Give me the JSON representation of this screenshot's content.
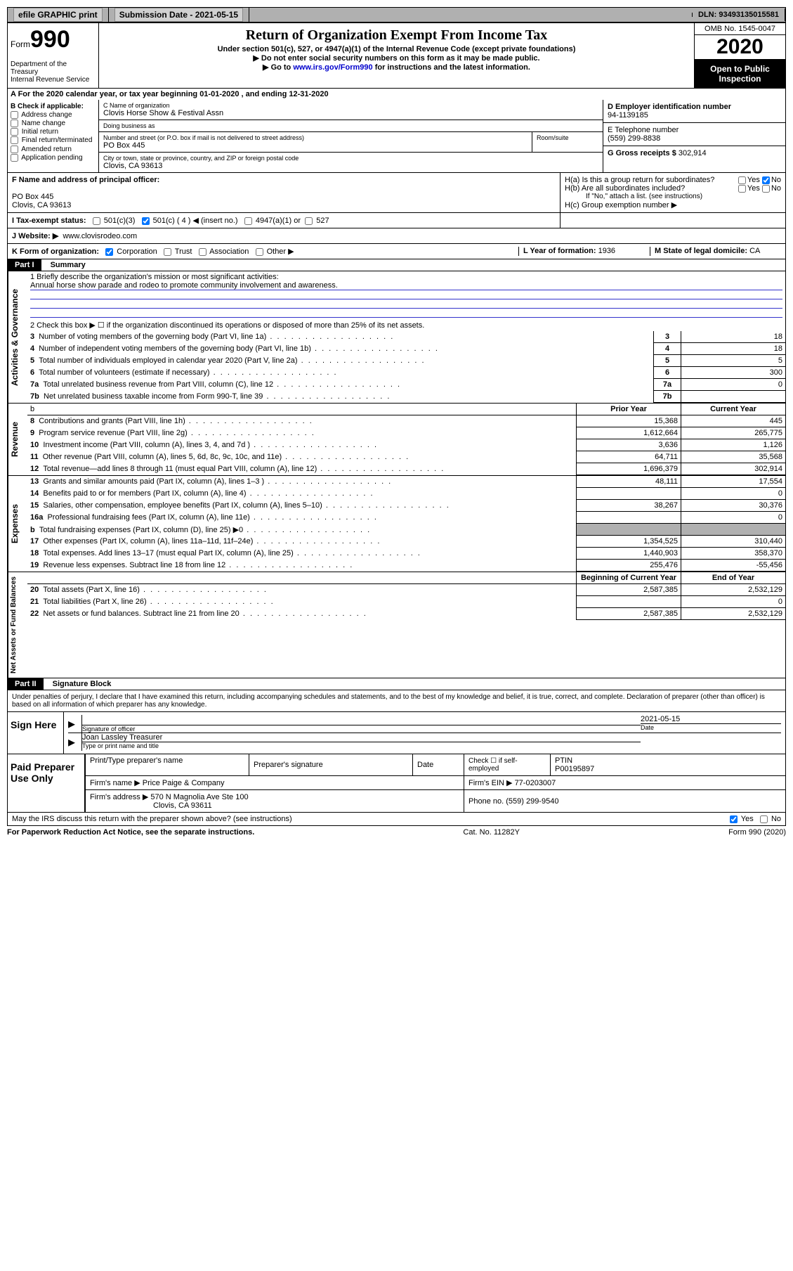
{
  "topbar": {
    "efile": "efile GRAPHIC print",
    "submission_lbl": "Submission Date",
    "submission_date": "2021-05-15",
    "dln_lbl": "DLN:",
    "dln": "93493135015581"
  },
  "header": {
    "form_word": "Form",
    "form_num": "990",
    "dept1": "Department of the Treasury",
    "dept2": "Internal Revenue Service",
    "title": "Return of Organization Exempt From Income Tax",
    "subtitle": "Under section 501(c), 527, or 4947(a)(1) of the Internal Revenue Code (except private foundations)",
    "instr1": "▶ Do not enter social security numbers on this form as it may be made public.",
    "instr2a": "▶ Go to ",
    "instr2_link": "www.irs.gov/Form990",
    "instr2b": " for instructions and the latest information.",
    "omb": "OMB No. 1545-0047",
    "year": "2020",
    "open": "Open to Public Inspection"
  },
  "lineA": "A For the 2020 calendar year, or tax year beginning 01-01-2020   , and ending 12-31-2020",
  "secB": {
    "title": "B Check if applicable:",
    "opts": [
      "Address change",
      "Name change",
      "Initial return",
      "Final return/terminated",
      "Amended return",
      "Application pending"
    ]
  },
  "secC": {
    "name_lbl": "C Name of organization",
    "name": "Clovis Horse Show & Festival Assn",
    "dba_lbl": "Doing business as",
    "dba": "",
    "addr_lbl": "Number and street (or P.O. box if mail is not delivered to street address)",
    "room_lbl": "Room/suite",
    "addr": "PO Box 445",
    "city_lbl": "City or town, state or province, country, and ZIP or foreign postal code",
    "city": "Clovis, CA  93613"
  },
  "secD": {
    "ein_lbl": "D Employer identification number",
    "ein": "94-1139185",
    "phone_lbl": "E Telephone number",
    "phone": "(559) 299-8838",
    "gross_lbl": "G Gross receipts $",
    "gross": "302,914"
  },
  "secF": {
    "lbl": "F Name and address of principal officer:",
    "line1": "PO Box 445",
    "line2": "Clovis, CA  93613"
  },
  "secH": {
    "ha": "H(a)  Is this a group return for subordinates?",
    "hb": "H(b)  Are all subordinates included?",
    "hb_note": "If \"No,\" attach a list. (see instructions)",
    "hc": "H(c)  Group exemption number ▶",
    "yes": "Yes",
    "no": "No"
  },
  "lineI": {
    "lbl": "I   Tax-exempt status:",
    "o1": "501(c)(3)",
    "o2": "501(c) ( 4 ) ◀ (insert no.)",
    "o3": "4947(a)(1) or",
    "o4": "527"
  },
  "lineJ": {
    "lbl": "J   Website: ▶",
    "val": "www.clovisrodeo.com"
  },
  "lineK": {
    "lbl": "K Form of organization:",
    "o1": "Corporation",
    "o2": "Trust",
    "o3": "Association",
    "o4": "Other ▶",
    "L_lbl": "L Year of formation:",
    "L_val": "1936",
    "M_lbl": "M State of legal domicile:",
    "M_val": "CA"
  },
  "part1": {
    "hdr": "Part I",
    "title": "Summary",
    "q1_lbl": "1  Briefly describe the organization's mission or most significant activities:",
    "q1_val": "Annual horse show parade and rodeo to promote community involvement and awareness.",
    "q2": "2  Check this box ▶ ☐  if the organization discontinued its operations or disposed of more than 25% of its net assets.",
    "rows_gov": [
      {
        "n": "3",
        "t": "Number of voting members of the governing body (Part VI, line 1a)",
        "v": "18"
      },
      {
        "n": "4",
        "t": "Number of independent voting members of the governing body (Part VI, line 1b)",
        "v": "18"
      },
      {
        "n": "5",
        "t": "Total number of individuals employed in calendar year 2020 (Part V, line 2a)",
        "v": "5"
      },
      {
        "n": "6",
        "t": "Total number of volunteers (estimate if necessary)",
        "v": "300"
      },
      {
        "n": "7a",
        "t": "Total unrelated business revenue from Part VIII, column (C), line 12",
        "v": "0"
      },
      {
        "n": "7b",
        "t": "Net unrelated business taxable income from Form 990-T, line 39",
        "v": ""
      }
    ],
    "col_prior": "Prior Year",
    "col_curr": "Current Year",
    "rows_rev": [
      {
        "n": "8",
        "t": "Contributions and grants (Part VIII, line 1h)",
        "p": "15,368",
        "c": "445"
      },
      {
        "n": "9",
        "t": "Program service revenue (Part VIII, line 2g)",
        "p": "1,612,664",
        "c": "265,775"
      },
      {
        "n": "10",
        "t": "Investment income (Part VIII, column (A), lines 3, 4, and 7d )",
        "p": "3,636",
        "c": "1,126"
      },
      {
        "n": "11",
        "t": "Other revenue (Part VIII, column (A), lines 5, 6d, 8c, 9c, 10c, and 11e)",
        "p": "64,711",
        "c": "35,568"
      },
      {
        "n": "12",
        "t": "Total revenue—add lines 8 through 11 (must equal Part VIII, column (A), line 12)",
        "p": "1,696,379",
        "c": "302,914"
      }
    ],
    "rows_exp": [
      {
        "n": "13",
        "t": "Grants and similar amounts paid (Part IX, column (A), lines 1–3 )",
        "p": "48,111",
        "c": "17,554"
      },
      {
        "n": "14",
        "t": "Benefits paid to or for members (Part IX, column (A), line 4)",
        "p": "",
        "c": "0"
      },
      {
        "n": "15",
        "t": "Salaries, other compensation, employee benefits (Part IX, column (A), lines 5–10)",
        "p": "38,267",
        "c": "30,376"
      },
      {
        "n": "16a",
        "t": "Professional fundraising fees (Part IX, column (A), line 11e)",
        "p": "",
        "c": "0"
      },
      {
        "n": "b",
        "t": "Total fundraising expenses (Part IX, column (D), line 25) ▶0",
        "p": "SHADE",
        "c": "SHADE"
      },
      {
        "n": "17",
        "t": "Other expenses (Part IX, column (A), lines 11a–11d, 11f–24e)",
        "p": "1,354,525",
        "c": "310,440"
      },
      {
        "n": "18",
        "t": "Total expenses. Add lines 13–17 (must equal Part IX, column (A), line 25)",
        "p": "1,440,903",
        "c": "358,370"
      },
      {
        "n": "19",
        "t": "Revenue less expenses. Subtract line 18 from line 12",
        "p": "255,476",
        "c": "-55,456"
      }
    ],
    "col_begin": "Beginning of Current Year",
    "col_end": "End of Year",
    "rows_net": [
      {
        "n": "20",
        "t": "Total assets (Part X, line 16)",
        "p": "2,587,385",
        "c": "2,532,129"
      },
      {
        "n": "21",
        "t": "Total liabilities (Part X, line 26)",
        "p": "",
        "c": "0"
      },
      {
        "n": "22",
        "t": "Net assets or fund balances. Subtract line 21 from line 20",
        "p": "2,587,385",
        "c": "2,532,129"
      }
    ],
    "side_gov": "Activities & Governance",
    "side_rev": "Revenue",
    "side_exp": "Expenses",
    "side_net": "Net Assets or Fund Balances"
  },
  "part2": {
    "hdr": "Part II",
    "title": "Signature Block",
    "perjury": "Under penalties of perjury, I declare that I have examined this return, including accompanying schedules and statements, and to the best of my knowledge and belief, it is true, correct, and complete. Declaration of preparer (other than officer) is based on all information of which preparer has any knowledge.",
    "sign_here": "Sign Here",
    "sig_officer": "Signature of officer",
    "date_lbl": "Date",
    "sig_date": "2021-05-15",
    "officer_name": "Joan Lassley  Treasurer",
    "type_name": "Type or print name and title",
    "paid_prep": "Paid Preparer Use Only",
    "p_name_lbl": "Print/Type preparer's name",
    "p_sig_lbl": "Preparer's signature",
    "p_date_lbl": "Date",
    "p_check": "Check ☐ if self-employed",
    "ptin_lbl": "PTIN",
    "ptin": "P00195897",
    "firm_name_lbl": "Firm's name    ▶",
    "firm_name": "Price Paige & Company",
    "firm_ein_lbl": "Firm's EIN ▶",
    "firm_ein": "77-0203007",
    "firm_addr_lbl": "Firm's address ▶",
    "firm_addr1": "570 N Magnolia Ave Ste 100",
    "firm_addr2": "Clovis, CA  93611",
    "firm_phone_lbl": "Phone no.",
    "firm_phone": "(559) 299-9540",
    "discuss": "May the IRS discuss this return with the preparer shown above? (see instructions)",
    "yes": "Yes",
    "no": "No"
  },
  "footer": {
    "pra": "For Paperwork Reduction Act Notice, see the separate instructions.",
    "cat": "Cat. No. 11282Y",
    "form": "Form 990 (2020)"
  }
}
